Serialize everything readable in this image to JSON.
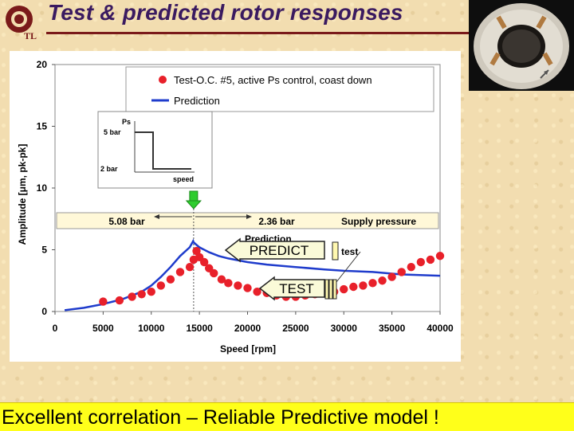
{
  "slide": {
    "title": "Test & predicted rotor responses",
    "footer": "Excellent correlation – Reliable Predictive model !"
  },
  "logo": {
    "text": "TL",
    "accent": "#7a1a1a"
  },
  "chart_data": {
    "type": "scatter",
    "xlabel": "Speed [rpm]",
    "ylabel": "Amplitude [μm, pk-pk]",
    "xlim": [
      0,
      40000
    ],
    "ylim": [
      0,
      20
    ],
    "x_ticks": [
      "0",
      "5000",
      "10000",
      "15000",
      "20000",
      "25000",
      "30000",
      "35000",
      "40000"
    ],
    "y_ticks": [
      "0",
      "5",
      "10",
      "15",
      "20"
    ],
    "grid": false,
    "legend_position": "top",
    "series": [
      {
        "name": "Test-O.C. #5, active Ps control, coast down",
        "kind": "markers",
        "color": "#e8202a",
        "x": [
          5000,
          6700,
          8000,
          9000,
          10000,
          11000,
          12000,
          13000,
          14000,
          14400,
          14700,
          15000,
          15500,
          16000,
          16500,
          17300,
          18000,
          19000,
          20000,
          21000,
          22000,
          23000,
          24000,
          25000,
          26000,
          27000,
          28000,
          29000,
          30000,
          31000,
          32000,
          33000,
          34000,
          35000,
          36000,
          37000,
          38000,
          39000,
          40000
        ],
        "y": [
          0.8,
          0.9,
          1.2,
          1.4,
          1.6,
          2.1,
          2.6,
          3.2,
          3.6,
          4.2,
          4.9,
          4.4,
          4.0,
          3.5,
          3.1,
          2.6,
          2.3,
          2.1,
          1.9,
          1.6,
          1.5,
          1.3,
          1.2,
          1.2,
          1.3,
          1.4,
          1.5,
          1.6,
          1.8,
          2.0,
          2.1,
          2.3,
          2.5,
          2.8,
          3.2,
          3.6,
          4.0,
          4.2,
          4.5
        ]
      },
      {
        "name": "Prediction",
        "kind": "line",
        "color": "#1f3ccc",
        "x": [
          1000,
          3000,
          5000,
          7000,
          9000,
          10000,
          11000,
          12000,
          13000,
          14000,
          14350,
          14400,
          15000,
          16000,
          17000,
          18000,
          20000,
          22000,
          25000,
          28000,
          30000,
          33000,
          36000,
          40000
        ],
        "y": [
          0.1,
          0.3,
          0.6,
          1.0,
          1.6,
          2.1,
          2.8,
          3.6,
          4.5,
          5.2,
          5.7,
          5.6,
          5.2,
          4.8,
          4.5,
          4.3,
          4.0,
          3.8,
          3.6,
          3.4,
          3.3,
          3.2,
          3.0,
          2.9
        ]
      }
    ],
    "annotations": {
      "switch_speed": 14400,
      "left_pressure": "5.08 bar",
      "right_pressure": "2.36 bar",
      "band_label": "Supply pressure",
      "inset": {
        "ylabel": "Ps",
        "high": "5 bar",
        "low": "2 bar",
        "xlabel": "speed"
      },
      "hidden_label_prediction": "Prediction",
      "hidden_label_test": "test",
      "callout_predict": "PREDICT",
      "callout_test": "TEST"
    },
    "colors": {
      "arrow_green": "#2ecc2e",
      "callout_fill": "#fafad8"
    }
  }
}
